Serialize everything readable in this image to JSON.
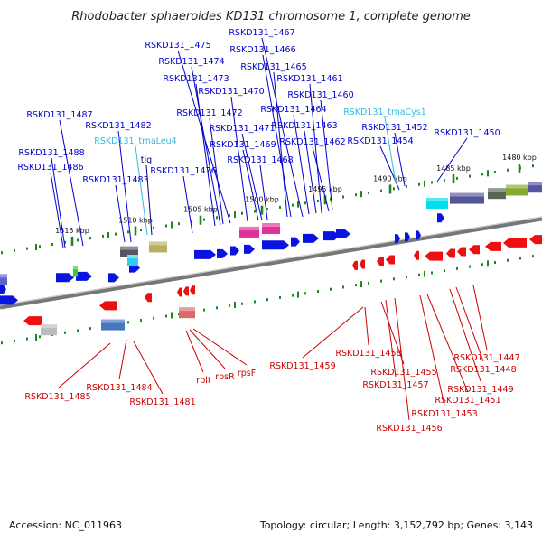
{
  "title": "Rhodobacter sphaeroides KD131 chromosome 1, complete genome",
  "footer": {
    "accession": "Accession: NC_011963",
    "summary": "Topology: circular; Length: 3,152,792 bp; Genes: 3,143"
  },
  "colors": {
    "forward_label": "#0000cc",
    "reverse_label": "#cc0000",
    "rna_label": "#33bbdd",
    "tick": "#1a8a1a",
    "backbone": "#888888"
  },
  "ruler_ticks": [
    "1480 kbp",
    "1485 kbp",
    "1490 kbp",
    "1495 kbp",
    "1500 kbp",
    "1505 kbp",
    "1510 kbp",
    "1515 kbp"
  ],
  "forward_genes": [
    "RSKD131_1467",
    "RSKD131_1475",
    "RSKD131_1466",
    "RSKD131_1474",
    "RSKD131_1465",
    "RSKD131_1473",
    "RSKD131_1461",
    "RSKD131_1470",
    "RSKD131_1460",
    "RSKD131_1487",
    "RSKD131_1472",
    "RSKD131_1464",
    "RSKD131_1482",
    "RSKD131_1471",
    "RSKD131_1463",
    "RSKD131_1452",
    "RSKD131_1469",
    "RSKD131_1462",
    "RSKD131_1454",
    "RSKD131_1450",
    "RSKD131_1488",
    "RSKD131_1468",
    "RSKD131_1486",
    "RSKD131_1476",
    "RSKD131_1483"
  ],
  "rna_genes": [
    "RSKD131_trnaCys1",
    "RSKD131_trnaLeu4"
  ],
  "forward_named_genes": [
    "tig"
  ],
  "reverse_genes": [
    "RSKD131_1485",
    "RSKD131_1484",
    "RSKD131_1481",
    "rplI",
    "rpsR",
    "rpsF",
    "RSKD131_1459",
    "RSKD131_1458",
    "RSKD131_1455",
    "RSKD131_1457",
    "RSKD131_1456",
    "RSKD131_1453",
    "RSKD131_1451",
    "RSKD131_1449",
    "RSKD131_1448",
    "RSKD131_1447"
  ]
}
